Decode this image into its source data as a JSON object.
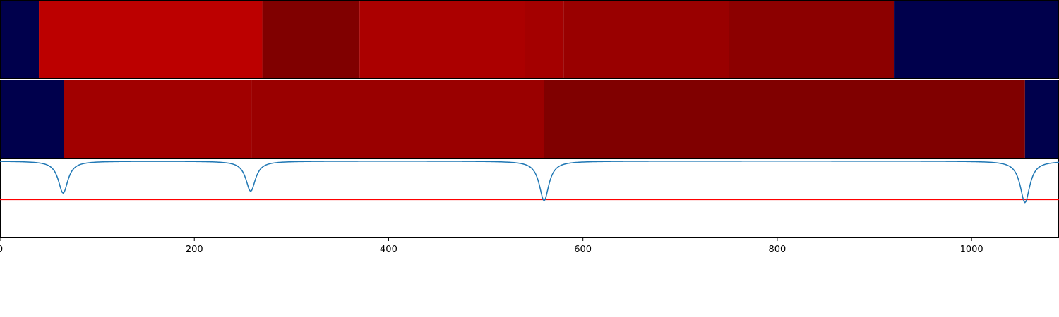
{
  "chart_data": {
    "type": "heatmap",
    "xlim": [
      0,
      1090
    ],
    "x_ticks": [
      0,
      200,
      400,
      600,
      800,
      1000
    ],
    "x_tick_labels": [
      "0",
      "200",
      "400",
      "600",
      "800",
      "1000"
    ],
    "rows": [
      {
        "segments": [
          {
            "start": 0,
            "end": 40,
            "color": "#00004c"
          },
          {
            "start": 40,
            "end": 270,
            "color": "#bc0000"
          },
          {
            "start": 270,
            "end": 370,
            "color": "#800000"
          },
          {
            "start": 370,
            "end": 540,
            "color": "#ab0000"
          },
          {
            "start": 540,
            "end": 580,
            "color": "#a40000"
          },
          {
            "start": 580,
            "end": 750,
            "color": "#990000"
          },
          {
            "start": 750,
            "end": 920,
            "color": "#8c0000"
          },
          {
            "start": 920,
            "end": 1090,
            "color": "#00004c"
          }
        ]
      },
      {
        "segments": [
          {
            "start": 0,
            "end": 66,
            "color": "#00004c"
          },
          {
            "start": 66,
            "end": 259,
            "color": "#a10000"
          },
          {
            "start": 259,
            "end": 560,
            "color": "#9a0000"
          },
          {
            "start": 560,
            "end": 1055,
            "color": "#800000"
          },
          {
            "start": 1055,
            "end": 1090,
            "color": "#00004c"
          }
        ]
      }
    ],
    "line_panel": {
      "series_color": "#1f77b4",
      "baseline": 1.0,
      "ylim": [
        -1.0,
        1.05
      ],
      "threshold": 0.0,
      "threshold_color": "#ff0000",
      "dips": [
        {
          "x": 65,
          "min": 0.15
        },
        {
          "x": 258,
          "min": 0.2
        },
        {
          "x": 560,
          "min": -0.05
        },
        {
          "x": 1055,
          "min": -0.1
        }
      ]
    }
  }
}
